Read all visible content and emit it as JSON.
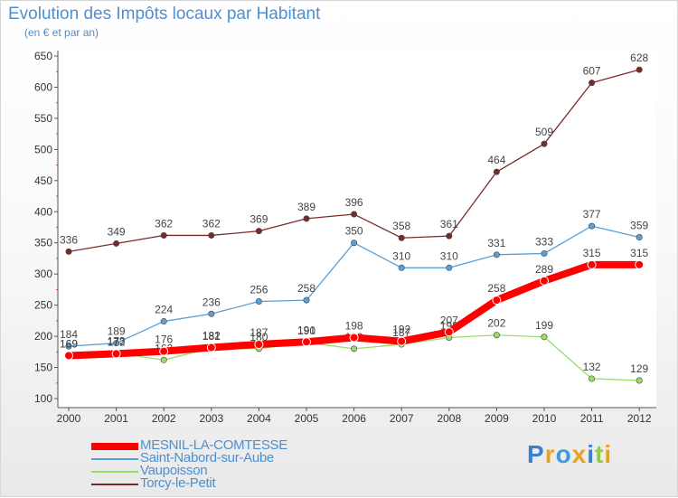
{
  "title": "Evolution des Impôts locaux par Habitant",
  "subtitle": "(en € et par an)",
  "colors": {
    "mesnil": "#ff0000",
    "saint_nabord": "#5a9fd6",
    "vaupoisson": "#99dd66",
    "torcy": "#7a2a2a",
    "axis": "#555555",
    "grid": "#e4e4e4"
  },
  "chart_data": {
    "type": "line",
    "x": [
      "2000",
      "2001",
      "2002",
      "2003",
      "2004",
      "2005",
      "2006",
      "2007",
      "2008",
      "2009",
      "2010",
      "2011",
      "2012"
    ],
    "ylim": [
      100,
      650
    ],
    "yticks": [
      100,
      150,
      200,
      250,
      300,
      350,
      400,
      450,
      500,
      550,
      600,
      650
    ],
    "grid": false,
    "legend_position": "bottom-left",
    "series": [
      {
        "name": "Torcy-le-Petit",
        "color": "#7a2a2a",
        "values": [
          336,
          349,
          362,
          362,
          369,
          389,
          396,
          358,
          361,
          464,
          509,
          607,
          628
        ]
      },
      {
        "name": "Saint-Nabord-sur-Aube",
        "color": "#5a9fd6",
        "values": [
          184,
          189,
          224,
          236,
          256,
          258,
          350,
          310,
          310,
          331,
          333,
          377,
          359
        ]
      },
      {
        "name": "Vaupoisson",
        "color": "#99dd66",
        "values": [
          169,
          173,
          162,
          181,
          180,
          190,
          180,
          187,
          198,
          202,
          199,
          132,
          129
        ]
      },
      {
        "name": "MESNIL-LA-COMTESSE",
        "color": "#ff0000",
        "values": [
          169,
          172,
          176,
          182,
          187,
          191,
          198,
          192,
          207,
          258,
          289,
          315,
          315
        ]
      }
    ]
  },
  "legend": {
    "items": [
      {
        "label": "MESNIL-LA-COMTESSE",
        "color": "#ff0000"
      },
      {
        "label": "Saint-Nabord-sur-Aube",
        "color": "#5a9fd6"
      },
      {
        "label": "Vaupoisson",
        "color": "#99dd66"
      },
      {
        "label": "Torcy-le-Petit",
        "color": "#7a2a2a"
      }
    ]
  },
  "logo": {
    "text": "Proxiti",
    "letters": [
      {
        "ch": "P",
        "color": "#3b7fd1"
      },
      {
        "ch": "r",
        "color": "#e8a21b"
      },
      {
        "ch": "o",
        "color": "#3b9be0"
      },
      {
        "ch": "x",
        "color": "#e8a21b"
      },
      {
        "ch": "i",
        "color": "#3b7fd1"
      },
      {
        "ch": "t",
        "color": "#8ccf3b"
      },
      {
        "ch": "i",
        "color": "#e8a21b"
      }
    ]
  }
}
